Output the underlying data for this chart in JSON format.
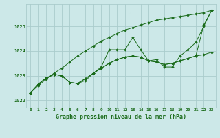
{
  "background_color": "#cce8e8",
  "grid_color": "#aacccc",
  "line_color": "#1a6b1a",
  "marker_color": "#1a6b1a",
  "title": "Graphe pression niveau de la mer (hPa)",
  "xlim": [
    -0.5,
    23.5
  ],
  "ylim": [
    1021.7,
    1025.9
  ],
  "yticks": [
    1022,
    1023,
    1024,
    1025
  ],
  "xticks": [
    0,
    1,
    2,
    3,
    4,
    5,
    6,
    7,
    8,
    9,
    10,
    11,
    12,
    13,
    14,
    15,
    16,
    17,
    18,
    19,
    20,
    21,
    22,
    23
  ],
  "line_straight": [
    1022.3,
    1022.6,
    1022.85,
    1023.1,
    1023.3,
    1023.55,
    1023.8,
    1024.0,
    1024.2,
    1024.4,
    1024.55,
    1024.7,
    1024.85,
    1024.95,
    1025.05,
    1025.15,
    1025.25,
    1025.3,
    1025.35,
    1025.4,
    1025.45,
    1025.5,
    1025.55,
    1025.65
  ],
  "line_wavy": [
    1022.3,
    1022.65,
    1022.9,
    1023.05,
    1023.0,
    1022.72,
    1022.68,
    1022.8,
    1023.1,
    1023.35,
    1024.05,
    1024.05,
    1024.05,
    1024.55,
    1024.05,
    1023.6,
    1023.65,
    1023.35,
    1023.35,
    1023.8,
    1024.05,
    1024.35,
    1025.0,
    1025.65
  ],
  "line_smooth1": [
    1022.3,
    1022.65,
    1022.9,
    1023.05,
    1023.0,
    1022.72,
    1022.68,
    1022.88,
    1023.1,
    1023.3,
    1023.5,
    1023.65,
    1023.75,
    1023.8,
    1023.75,
    1023.6,
    1023.55,
    1023.45,
    1023.5,
    1023.6,
    1023.7,
    1023.8,
    1023.85,
    1023.95
  ],
  "line_smooth2": [
    1022.3,
    1022.65,
    1022.9,
    1023.05,
    1023.0,
    1022.72,
    1022.68,
    1022.88,
    1023.1,
    1023.3,
    1023.5,
    1023.65,
    1023.75,
    1023.8,
    1023.75,
    1023.6,
    1023.55,
    1023.45,
    1023.5,
    1023.6,
    1023.7,
    1023.8,
    1025.05,
    1025.65
  ]
}
